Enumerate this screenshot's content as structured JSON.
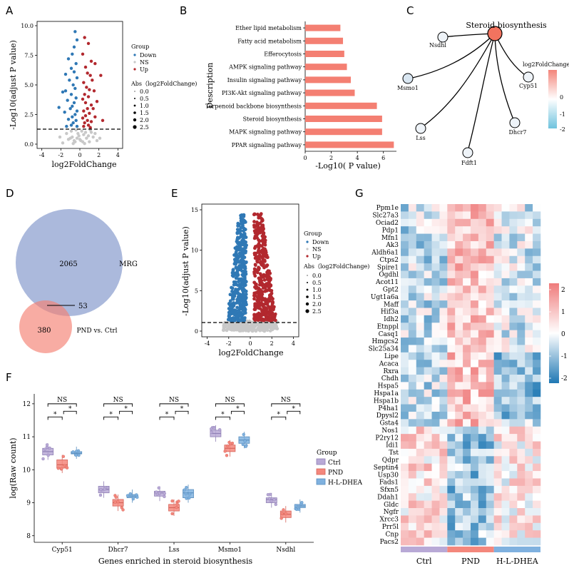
{
  "panel_labels": [
    "A",
    "B",
    "C",
    "D",
    "E",
    "F",
    "G"
  ],
  "colors": {
    "down": "#2f78b5",
    "ns": "#c8c8c8",
    "up": "#b2282e",
    "bar": "#f47f72",
    "ctrl": "#b8a9d6",
    "pnd": "#f4877c",
    "hld": "#7fb1df",
    "heat_low": "#1f78b4",
    "heat_mid": "#ffffff",
    "heat_high": "#ef7b7b"
  },
  "chart_data": [
    {
      "panel": "A",
      "type": "scatter",
      "xlabel": "log2FoldChange",
      "ylabel": "-Log10(adjust P value)",
      "xlim": [
        -4.5,
        4.5
      ],
      "ylim": [
        0,
        10
      ],
      "xticks": [
        "-4",
        "-2",
        "0",
        "2",
        "4"
      ],
      "yticks": [
        "0.0",
        "2.5",
        "5.0",
        "7.5",
        "10.0"
      ],
      "threshold": 1.3,
      "legend": {
        "title": "Group",
        "items": [
          "Down",
          "NS",
          "Up"
        ],
        "size_title": "Abs（log2FoldChange)",
        "sizes": [
          "0.0",
          "0.5",
          "1.0",
          "1.5",
          "2.0",
          "2.5"
        ]
      },
      "up": [
        [
          0.5,
          9
        ],
        [
          0.9,
          8.5
        ],
        [
          0.3,
          7.6
        ],
        [
          1.2,
          7
        ],
        [
          0.6,
          6.5
        ],
        [
          1.6,
          6.8
        ],
        [
          0.8,
          6
        ],
        [
          1.1,
          5.8
        ],
        [
          1.3,
          5.4
        ],
        [
          2.2,
          5.8
        ],
        [
          0.4,
          5.2
        ],
        [
          0.7,
          4.8
        ],
        [
          1.0,
          4.6
        ],
        [
          1.5,
          4.5
        ],
        [
          0.5,
          4.2
        ],
        [
          0.9,
          4
        ],
        [
          1.8,
          3.6
        ],
        [
          0.3,
          3.8
        ],
        [
          0.6,
          3.5
        ],
        [
          1.2,
          3.3
        ],
        [
          0.8,
          3
        ],
        [
          1.4,
          3
        ],
        [
          0.4,
          2.8
        ],
        [
          1.0,
          2.6
        ],
        [
          0.6,
          2.4
        ],
        [
          1.6,
          2.3
        ],
        [
          0.3,
          2.2
        ],
        [
          0.8,
          2
        ],
        [
          1.2,
          1.9
        ],
        [
          0.5,
          1.8
        ],
        [
          0.9,
          1.6
        ],
        [
          0.4,
          1.5
        ],
        [
          1.1,
          1.4
        ],
        [
          2.4,
          2
        ]
      ],
      "down": [
        [
          -0.5,
          9.5
        ],
        [
          -0.3,
          8.8
        ],
        [
          -0.6,
          8.2
        ],
        [
          -0.8,
          7.6
        ],
        [
          -1.2,
          7.2
        ],
        [
          -0.4,
          6.8
        ],
        [
          -0.9,
          6.4
        ],
        [
          -0.6,
          6.1
        ],
        [
          -1.5,
          5.9
        ],
        [
          -0.3,
          5.6
        ],
        [
          -1.1,
          5.4
        ],
        [
          -0.7,
          5
        ],
        [
          -0.5,
          4.7
        ],
        [
          -1.8,
          4.4
        ],
        [
          -0.9,
          4.2
        ],
        [
          -0.4,
          3.9
        ],
        [
          -1.3,
          3.7
        ],
        [
          -0.6,
          3.5
        ],
        [
          -0.8,
          3.2
        ],
        [
          -1.0,
          3
        ],
        [
          -0.3,
          2.8
        ],
        [
          -1.6,
          2.7
        ],
        [
          -0.5,
          2.5
        ],
        [
          -0.8,
          2.3
        ],
        [
          -1.2,
          2.1
        ],
        [
          -0.4,
          2
        ],
        [
          -0.7,
          1.8
        ],
        [
          -0.9,
          1.6
        ],
        [
          -0.3,
          1.5
        ],
        [
          -1.4,
          1.5
        ],
        [
          -2.2,
          3.1
        ],
        [
          -1.5,
          4.5
        ]
      ],
      "ns": [
        [
          -1.8,
          0.1
        ],
        [
          -1.2,
          0.4
        ],
        [
          -0.8,
          0.6
        ],
        [
          -0.5,
          0.2
        ],
        [
          -0.2,
          0.9
        ],
        [
          0.1,
          0.3
        ],
        [
          0.4,
          0.8
        ],
        [
          0.7,
          0.5
        ],
        [
          1.0,
          0.2
        ],
        [
          1.4,
          0.6
        ],
        [
          1.8,
          0.3
        ],
        [
          -1.4,
          0.9
        ],
        [
          0.2,
          1.1
        ],
        [
          -0.3,
          0.5
        ],
        [
          0.6,
          1.0
        ],
        [
          -0.9,
          1.1
        ],
        [
          1.2,
          1.0
        ],
        [
          -0.6,
          0.3
        ],
        [
          0.9,
          0.7
        ],
        [
          -1.0,
          0.5
        ],
        [
          0.3,
          0.2
        ],
        [
          -0.1,
          0.7
        ],
        [
          1.6,
          0.9
        ],
        [
          -2.1,
          0.6
        ],
        [
          2.1,
          0.5
        ],
        [
          -0.4,
          1.2
        ],
        [
          0.0,
          0.4
        ],
        [
          0.5,
          0.05
        ],
        [
          -0.7,
          0.05
        ],
        [
          1.1,
          1.2
        ]
      ]
    },
    {
      "panel": "B",
      "type": "bar",
      "xlabel": "-Log10( P value)",
      "ylabel": "Description",
      "xlim": [
        0,
        7
      ],
      "xticks": [
        "0",
        "2",
        "4",
        "6"
      ],
      "categories": [
        "Ether lipid metabolism",
        "Fatty acid metabolism",
        "Efferocytosis",
        "AMPK signaling pathway",
        "Insulin signaling pathway",
        "PI3K-Akt signaling pathway",
        "Terpenoid backbone biosynthesis",
        "Steroid biosynthesis",
        "MAPK signaling pathway",
        "PPAR signaling pathway"
      ],
      "values": [
        2.7,
        2.9,
        3.0,
        3.2,
        3.5,
        3.8,
        5.5,
        5.9,
        5.9,
        6.8
      ]
    },
    {
      "panel": "C",
      "type": "network",
      "hub": "Steroid biosynthesis",
      "genes": [
        "Nsdhl",
        "Msmo1",
        "Lss",
        "Fdft1",
        "Dhcr7",
        "Cyp51"
      ],
      "legend_title": "log2FoldChange",
      "legend_ticks": [
        "0",
        "-1",
        "-2"
      ]
    },
    {
      "panel": "D",
      "type": "venn",
      "sets": [
        {
          "name": "MRG",
          "only": "2065"
        },
        {
          "name": "PND vs. Ctrl",
          "only": "380"
        }
      ],
      "overlap": "53"
    },
    {
      "panel": "E",
      "type": "scatter",
      "xlabel": "log2FoldChange",
      "ylabel": "-Log10(adjust P value)",
      "xlim": [
        -4.5,
        4.5
      ],
      "ylim": [
        0,
        15
      ],
      "xticks": [
        "-4",
        "-2",
        "0",
        "2",
        "4"
      ],
      "yticks": [
        "0",
        "5",
        "10",
        "15"
      ],
      "threshold": 1.3,
      "legend": {
        "title": "Group",
        "items": [
          "Down",
          "NS",
          "Up"
        ],
        "size_title": "Abs（log2FoldChange)",
        "sizes": [
          "0.0",
          "0.5",
          "1.0",
          "1.5",
          "2.0",
          "2.5"
        ]
      }
    },
    {
      "panel": "F",
      "type": "box",
      "xlabel": "Genes  enriched in steroid biosynthesis",
      "ylabel": "log(Raw count)",
      "ylim": [
        7.8,
        12.3
      ],
      "yticks": [
        "8",
        "9",
        "10",
        "11",
        "12"
      ],
      "categories": [
        "Cyp51",
        "Dhcr7",
        "Lss",
        "Msmo1",
        "Nsdhl"
      ],
      "legend_title": "Group",
      "groups": [
        "Ctrl",
        "PND",
        "H-L-DHEA"
      ],
      "medians": [
        [
          10.55,
          10.15,
          10.5
        ],
        [
          9.4,
          9.0,
          9.2
        ],
        [
          9.3,
          8.85,
          9.3
        ],
        [
          11.1,
          10.65,
          10.9
        ],
        [
          9.1,
          8.65,
          8.9
        ]
      ],
      "q1": [
        [
          10.45,
          10.05,
          10.48
        ],
        [
          9.3,
          8.9,
          9.15
        ],
        [
          9.2,
          8.75,
          9.15
        ],
        [
          11.0,
          10.55,
          10.8
        ],
        [
          9.0,
          8.55,
          8.85
        ]
      ],
      "q3": [
        [
          10.65,
          10.3,
          10.55
        ],
        [
          9.5,
          9.1,
          9.25
        ],
        [
          9.35,
          8.95,
          9.4
        ],
        [
          11.2,
          10.75,
          11.0
        ],
        [
          9.15,
          8.75,
          8.95
        ]
      ],
      "significance": [
        "NS",
        "NS",
        "NS",
        "NS",
        "NS"
      ]
    },
    {
      "panel": "G",
      "type": "heatmap",
      "genes": [
        "Ppm1e",
        "Slc27a3",
        "Ociad2",
        "Pdp1",
        "Mfn1",
        "Ak3",
        "Aldh6a1",
        "Ctps2",
        "Spire1",
        "Ogdhl",
        "Acot11",
        "Gpt2",
        "Ugt1a6a",
        "Maff",
        "Hif3a",
        "Idh2",
        "Etnppl",
        "Casq1",
        "Hmgcs2",
        "Slc25a34",
        "Lipe",
        "Acaca",
        "Rxra",
        "Chdh",
        "Hspa5",
        "Hspa1a",
        "Hspa1b",
        "P4ha1",
        "Dpysl2",
        "Gsta4",
        "Nos1",
        "P2ry12",
        "Idi1",
        "Tst",
        "Qdpr",
        "Septin4",
        "Usp30",
        "Fads1",
        "Sfxn5",
        "Ddah1",
        "Gldc",
        "Ngfr",
        "Xrcc3",
        "Prr5l",
        "Cnp",
        "Pacs2"
      ],
      "groups": [
        "Ctrl",
        "PND",
        "H-L-DHEA"
      ],
      "columns_per_group": 6,
      "legend_ticks": [
        "2",
        "1",
        "0",
        "-1",
        "-2"
      ]
    }
  ]
}
